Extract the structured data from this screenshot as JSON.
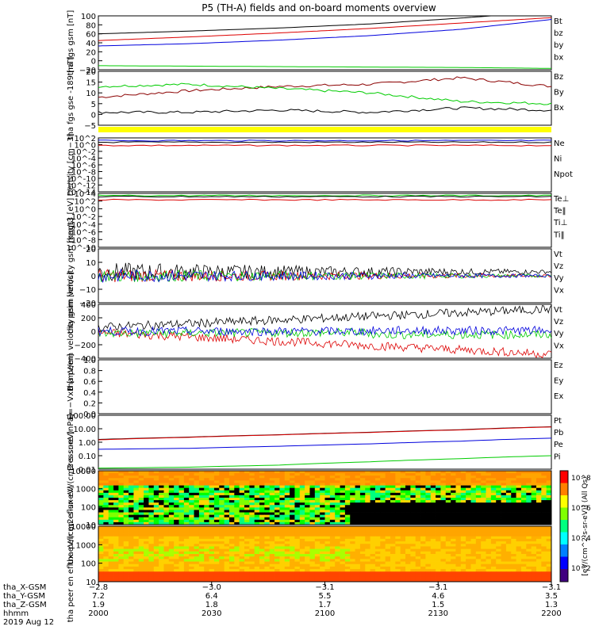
{
  "title": "P5 (TH-A) fields and on-board moments overview",
  "date_label": "2019 Aug 12",
  "colorbar": {
    "label": "[eV/(cm^2-s-sr-eV)] (All Qs)",
    "tick_labels": [
      "10^8",
      "10^6",
      "10^4",
      "10^2"
    ]
  },
  "colors": {
    "black": "#000000",
    "red": "#dd0000",
    "green": "#00cc00",
    "blue": "#0000dd",
    "darkred": "#8b0000",
    "yellow": "#ffff00"
  },
  "chart_data": [
    {
      "type": "line",
      "ylabel": "tha fgs gsm [nT]",
      "ylim": [
        -20,
        100
      ],
      "ytick_labels": [
        "100",
        "80",
        "60",
        "40",
        "20",
        "0",
        "−20"
      ],
      "series": [
        {
          "name": "Bt",
          "color": "#000000",
          "values": [
            60,
            66,
            73,
            82,
            95,
            110
          ]
        },
        {
          "name": "bz",
          "color": "#dd0000",
          "values": [
            45,
            53,
            62,
            72,
            84,
            96
          ]
        },
        {
          "name": "by",
          "color": "#00cc00",
          "values": [
            -11,
            -12,
            -13,
            -14,
            -15,
            -17
          ]
        },
        {
          "name": "bx",
          "color": "#0000dd",
          "values": [
            33,
            38,
            46,
            56,
            70,
            92
          ]
        }
      ]
    },
    {
      "type": "line",
      "ylabel": "tha fgs gse -189 [nT]",
      "ylim": [
        -5,
        20
      ],
      "ytick_labels": [
        "20",
        "15",
        "10",
        "5",
        "0",
        "−5"
      ],
      "series": [
        {
          "name": "Bz",
          "color": "#8b0000",
          "values": [
            8,
            11,
            13,
            14,
            17,
            13
          ]
        },
        {
          "name": "By",
          "color": "#00cc00",
          "values": [
            13,
            14,
            12,
            10,
            6,
            5
          ]
        },
        {
          "name": "Bx",
          "color": "#000000",
          "values": [
            1,
            1,
            2,
            1,
            3,
            2
          ]
        }
      ]
    },
    {
      "type": "line",
      "ylabel": "Density [cm−3]",
      "ytick_labels": [
        "10^2",
        "10^0",
        "10^-2",
        "10^-4",
        "10^-6",
        "10^-8",
        "10^-10",
        "10^-12",
        "10^-14"
      ],
      "series": [
        {
          "name": "Ne",
          "color": "#dd0000"
        },
        {
          "name": "Ni",
          "color": "#000000"
        },
        {
          "name": "Npot",
          "color": "#0000dd"
        }
      ]
    },
    {
      "type": "line",
      "ylabel": "magt3 [eV]",
      "ytick_labels": [
        "10^4",
        "10^2",
        "10^0",
        "10^-2",
        "10^-4",
        "10^-6",
        "10^-8",
        "10^-10"
      ],
      "series": [
        {
          "name": "Te⊥",
          "color": "#dd0000"
        },
        {
          "name": "Te‖",
          "color": "#000000"
        },
        {
          "name": "Ti⊥",
          "color": "#0000dd"
        },
        {
          "name": "Ti‖",
          "color": "#00cc00"
        }
      ]
    },
    {
      "type": "line",
      "ylabel": "tha peim velocity gsm [km/s]",
      "ylim": [
        -20,
        20
      ],
      "ytick_labels": [
        "20",
        "10",
        "0",
        "−10",
        "−20"
      ],
      "series": [
        {
          "name": "Vt",
          "color": "#000000"
        },
        {
          "name": "Vz",
          "color": "#dd0000"
        },
        {
          "name": "Vy",
          "color": "#00cc00"
        },
        {
          "name": "Vx",
          "color": "#0000dd"
        }
      ]
    },
    {
      "type": "line",
      "ylabel": "tha peem velocity gsm [km/s]",
      "ylim": [
        -400,
        400
      ],
      "ytick_labels": [
        "400",
        "200",
        "0",
        "−200",
        "−400"
      ],
      "series": [
        {
          "name": "Vt",
          "color": "#000000"
        },
        {
          "name": "Vz",
          "color": "#dd0000"
        },
        {
          "name": "Vy",
          "color": "#00cc00"
        },
        {
          "name": "Vx",
          "color": "#0000dd"
        }
      ]
    },
    {
      "type": "line",
      "ylabel": "E=−VxB [mV/m]",
      "ylim": [
        0,
        1
      ],
      "ytick_labels": [
        "1.0",
        "0.8",
        "0.6",
        "0.4",
        "0.2",
        "0.0"
      ],
      "series": [
        {
          "name": "Ez",
          "color": "#dd0000"
        },
        {
          "name": "Ey",
          "color": "#00cc00"
        },
        {
          "name": "Ex",
          "color": "#0000dd"
        }
      ]
    },
    {
      "type": "line",
      "ylabel": "Pressure [nPa]",
      "ytick_labels": [
        "100.00",
        "10.00",
        "1.00",
        "0.10",
        "0.01"
      ],
      "series": [
        {
          "name": "Pt",
          "color": "#000000",
          "values": [
            1.6,
            2.4,
            3.6,
            5.5,
            8.5,
            14
          ]
        },
        {
          "name": "Pb",
          "color": "#dd0000",
          "values": [
            1.5,
            2.3,
            3.5,
            5.3,
            8.2,
            13.5
          ]
        },
        {
          "name": "Pe",
          "color": "#0000dd",
          "values": [
            0.3,
            0.35,
            0.5,
            0.75,
            1.2,
            2.0
          ]
        },
        {
          "name": "Pi",
          "color": "#00cc00",
          "values": [
            0.012,
            0.014,
            0.02,
            0.035,
            0.06,
            0.1
          ]
        }
      ]
    },
    {
      "type": "heatmap",
      "ylabel": "tha peir en eflux eV/(cm2-s-sr-eV)",
      "ytick_labels": [
        "10000",
        "1000",
        "100",
        "10"
      ]
    },
    {
      "type": "heatmap",
      "ylabel": "tha peer en eflux eV/(cm2-s-sr-eV)",
      "ytick_labels": [
        "10000",
        "1000",
        "100",
        "10"
      ]
    }
  ],
  "orbit": {
    "row_labels": [
      "tha_X-GSM",
      "tha_Y-GSM",
      "tha_Z-GSM",
      "hhmm"
    ],
    "columns": [
      {
        "x": "−2.8",
        "y": "7.2",
        "z": "1.9",
        "t": "2000"
      },
      {
        "x": "−3.0",
        "y": "6.4",
        "z": "1.8",
        "t": "2030"
      },
      {
        "x": "−3.1",
        "y": "5.5",
        "z": "1.7",
        "t": "2100"
      },
      {
        "x": "−3.1",
        "y": "4.6",
        "z": "1.5",
        "t": "2130"
      },
      {
        "x": "−3.1",
        "y": "3.5",
        "z": "1.3",
        "t": "2200"
      }
    ]
  }
}
